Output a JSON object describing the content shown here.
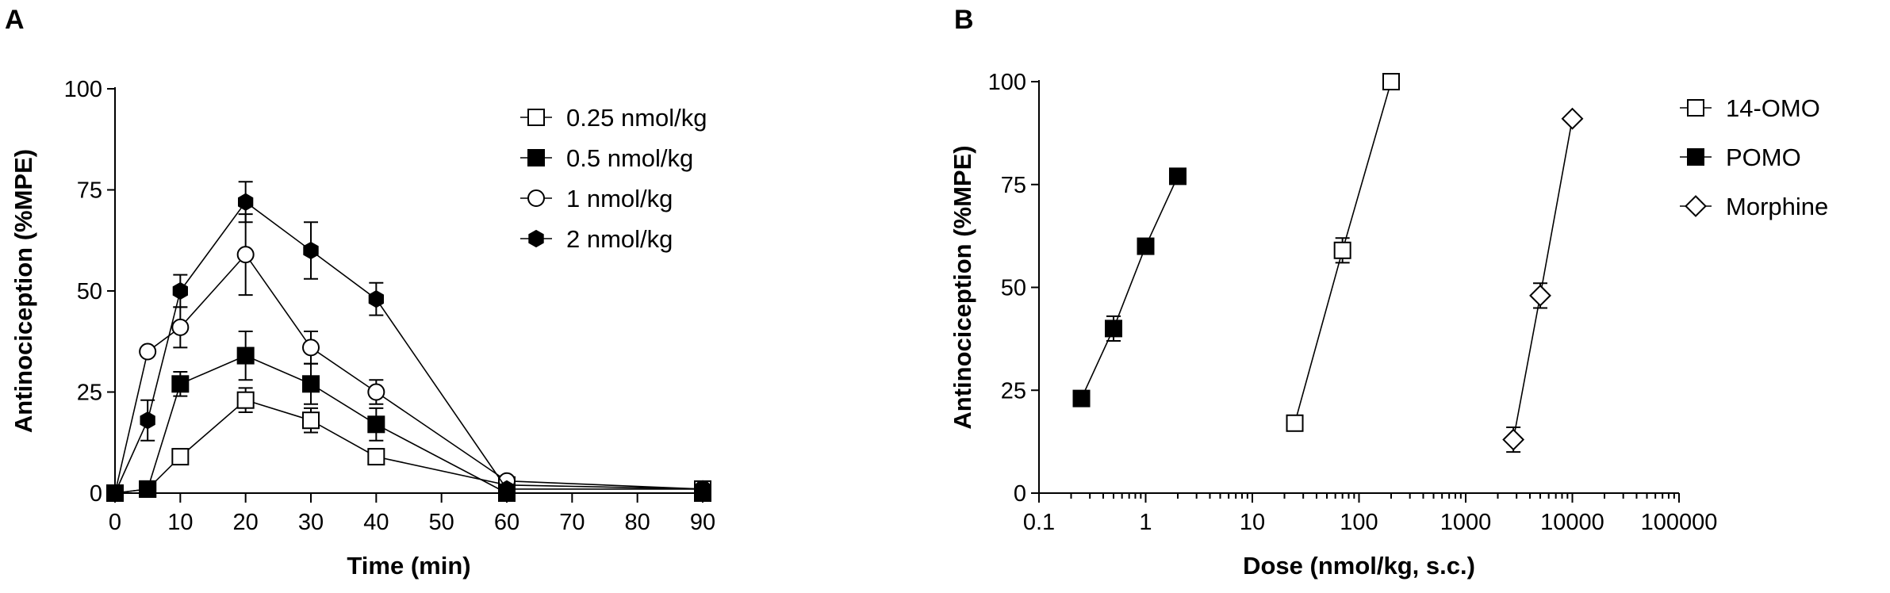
{
  "chart_data": [
    {
      "panel": "A",
      "type": "line",
      "xlabel": "Time (min)",
      "ylabel": "Antinociception (%MPE)",
      "xlim": [
        0,
        90
      ],
      "ylim": [
        0,
        100
      ],
      "xticks": [
        "0",
        "10",
        "20",
        "30",
        "40",
        "50",
        "60",
        "70",
        "80",
        "90"
      ],
      "yticks": [
        "0",
        "25",
        "50",
        "75",
        "100"
      ],
      "legend_position": "top-right",
      "series": [
        {
          "name": "0.25 nmol/kg",
          "marker": "open-square",
          "x": [
            0,
            5,
            10,
            20,
            30,
            40,
            60,
            90
          ],
          "y": [
            0,
            1,
            9,
            23,
            18,
            9,
            2,
            1
          ],
          "err": [
            0,
            1,
            1,
            3,
            3,
            1,
            1,
            1
          ]
        },
        {
          "name": "0.5 nmol/kg",
          "marker": "filled-square",
          "x": [
            0,
            5,
            10,
            20,
            30,
            40,
            60,
            90
          ],
          "y": [
            0,
            1,
            27,
            34,
            27,
            17,
            0,
            0
          ],
          "err": [
            0,
            1,
            3,
            6,
            5,
            4,
            1,
            1
          ]
        },
        {
          "name": "1 nmol/kg",
          "marker": "open-circle",
          "x": [
            0,
            5,
            10,
            20,
            30,
            40,
            60,
            90
          ],
          "y": [
            0,
            35,
            41,
            59,
            36,
            25,
            3,
            1
          ],
          "err": [
            0,
            1,
            5,
            10,
            4,
            3,
            1,
            1
          ]
        },
        {
          "name": "2 nmol/kg",
          "marker": "filled-hexagon",
          "x": [
            0,
            5,
            10,
            20,
            30,
            40,
            60,
            90
          ],
          "y": [
            0,
            18,
            50,
            72,
            60,
            48,
            1,
            1
          ],
          "err": [
            0,
            5,
            4,
            5,
            7,
            4,
            1,
            1
          ]
        }
      ]
    },
    {
      "panel": "B",
      "type": "line",
      "xscale": "log",
      "xlabel": "Dose (nmol/kg, s.c.)",
      "ylabel": "Antinociception (%MPE)",
      "xlim": [
        0.1,
        100000
      ],
      "ylim": [
        0,
        100
      ],
      "xticks": [
        "0.1",
        "1",
        "10",
        "100",
        "1000",
        "10000",
        "100000"
      ],
      "yticks": [
        "0",
        "25",
        "50",
        "75",
        "100"
      ],
      "legend_position": "right",
      "series": [
        {
          "name": "14-OMO",
          "marker": "open-square",
          "x": [
            25,
            70,
            200
          ],
          "y": [
            17,
            59,
            100
          ],
          "err": [
            0,
            3,
            0
          ]
        },
        {
          "name": "POMO",
          "marker": "filled-square",
          "x": [
            0.25,
            0.5,
            1,
            2
          ],
          "y": [
            23,
            40,
            60,
            77
          ],
          "err": [
            0,
            3,
            0,
            0
          ]
        },
        {
          "name": "Morphine",
          "marker": "open-diamond",
          "x": [
            2800,
            5000,
            10000
          ],
          "y": [
            13,
            48,
            91
          ],
          "err": [
            3,
            3,
            0
          ]
        }
      ]
    }
  ]
}
